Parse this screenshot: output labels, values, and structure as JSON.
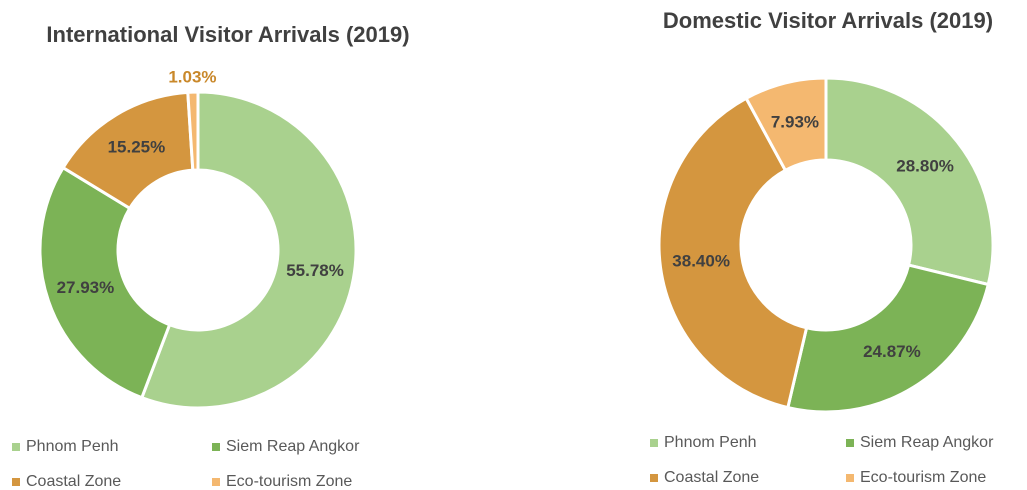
{
  "chart_data": [
    {
      "type": "donut",
      "title": "International Visitor Arrivals (2019)",
      "categories": [
        "Phnom Penh",
        "Siem Reap Angkor",
        "Coastal Zone",
        "Eco-tourism Zone"
      ],
      "values": [
        55.78,
        27.93,
        15.25,
        1.03
      ],
      "value_labels": [
        "55.78%",
        "27.93%",
        "15.25%",
        "1.03%"
      ],
      "colors": [
        "#a9d18e",
        "#7cb356",
        "#d4963f",
        "#f4b870"
      ]
    },
    {
      "type": "donut",
      "title": "Domestic Visitor Arrivals (2019)",
      "categories": [
        "Phnom Penh",
        "Siem Reap Angkor",
        "Coastal Zone",
        "Eco-tourism Zone"
      ],
      "values": [
        28.8,
        24.87,
        38.4,
        7.93
      ],
      "value_labels": [
        "28.80%",
        "24.87%",
        "38.40%",
        "7.93%"
      ],
      "colors": [
        "#a9d18e",
        "#7cb356",
        "#d4963f",
        "#f4b870"
      ]
    }
  ]
}
